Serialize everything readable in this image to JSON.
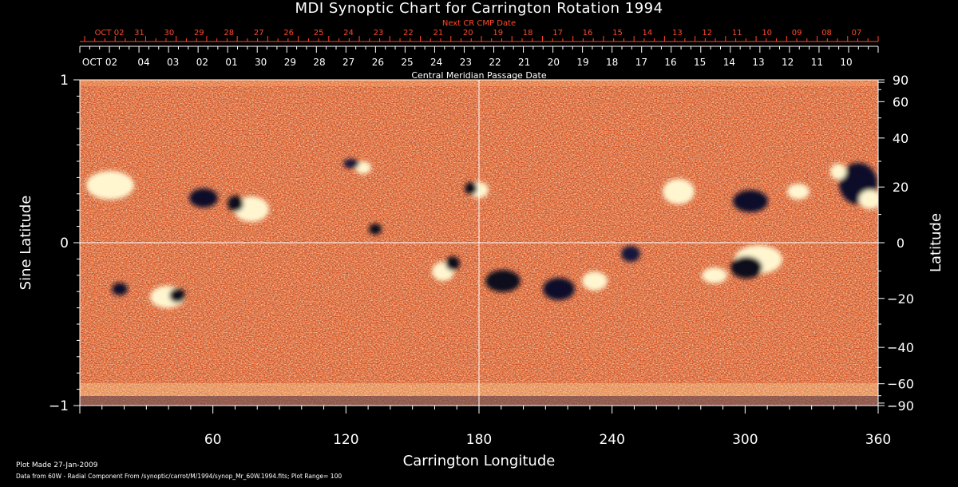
{
  "title": "MDI Synoptic Chart for Carrington Rotation 1994",
  "top_axis": {
    "label": "Next CR CMP Date",
    "labels": [
      "OCT 02",
      "31",
      "30",
      "29",
      "28",
      "27",
      "26",
      "25",
      "24",
      "23",
      "22",
      "21",
      "20",
      "19",
      "18",
      "17",
      "16",
      "15",
      "14",
      "13",
      "12",
      "11",
      "10",
      "09",
      "08",
      "07"
    ]
  },
  "cmp_axis": {
    "label": "Central Meridian Passage Date",
    "labels": [
      "OCT 02",
      "04",
      "03",
      "02",
      "01",
      "30",
      "29",
      "28",
      "27",
      "26",
      "25",
      "24",
      "23",
      "22",
      "21",
      "20",
      "19",
      "18",
      "17",
      "16",
      "15",
      "14",
      "13",
      "12",
      "11",
      "10"
    ]
  },
  "x_axis": {
    "label": "Carrington Longitude",
    "ticks": [
      "60",
      "120",
      "180",
      "240",
      "300",
      "360"
    ],
    "range": [
      0,
      360
    ]
  },
  "y_left": {
    "label": "Sine Latitude",
    "ticks": [
      "1",
      "0",
      "−1"
    ],
    "range": [
      -1,
      1
    ]
  },
  "y_right": {
    "label": "Latitude",
    "ticks": [
      "90",
      "60",
      "40",
      "20",
      "0",
      "−20",
      "−40",
      "−60",
      "−90"
    ]
  },
  "footer": {
    "line1": "Plot Made 27-Jan-2009",
    "line2": "Data from 60W - Radial Component From /synoptic/carrot/M/1994/synop_Mr_60W.1994.fits; Plot Range=  100"
  },
  "colors": {
    "top_axis": "#ff4a2a",
    "background": "#000000",
    "grid": "#ffffff"
  }
}
